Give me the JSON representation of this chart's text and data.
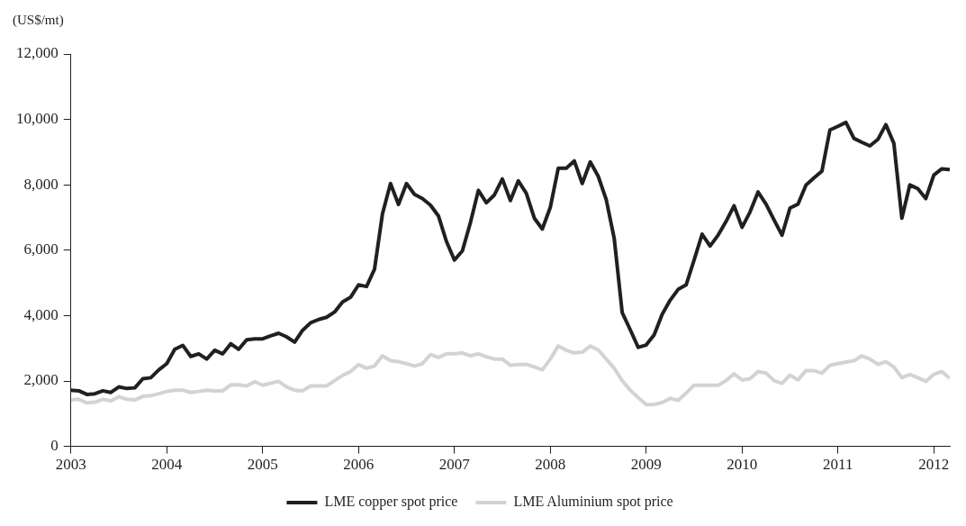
{
  "chart_data": {
    "type": "line",
    "ylabel": "(US$/mt)",
    "x": [
      "2003-01",
      "2003-02",
      "2003-03",
      "2003-04",
      "2003-05",
      "2003-06",
      "2003-07",
      "2003-08",
      "2003-09",
      "2003-10",
      "2003-11",
      "2003-12",
      "2004-01",
      "2004-02",
      "2004-03",
      "2004-04",
      "2004-05",
      "2004-06",
      "2004-07",
      "2004-08",
      "2004-09",
      "2004-10",
      "2004-11",
      "2004-12",
      "2005-01",
      "2005-02",
      "2005-03",
      "2005-04",
      "2005-05",
      "2005-06",
      "2005-07",
      "2005-08",
      "2005-09",
      "2005-10",
      "2005-11",
      "2005-12",
      "2006-01",
      "2006-02",
      "2006-03",
      "2006-04",
      "2006-05",
      "2006-06",
      "2006-07",
      "2006-08",
      "2006-09",
      "2006-10",
      "2006-11",
      "2006-12",
      "2007-01",
      "2007-02",
      "2007-03",
      "2007-04",
      "2007-05",
      "2007-06",
      "2007-07",
      "2007-08",
      "2007-09",
      "2007-10",
      "2007-11",
      "2007-12",
      "2008-01",
      "2008-02",
      "2008-03",
      "2008-04",
      "2008-05",
      "2008-06",
      "2008-07",
      "2008-08",
      "2008-09",
      "2008-10",
      "2008-11",
      "2008-12",
      "2009-01",
      "2009-02",
      "2009-03",
      "2009-04",
      "2009-05",
      "2009-06",
      "2009-07",
      "2009-08",
      "2009-09",
      "2009-10",
      "2009-11",
      "2009-12",
      "2010-01",
      "2010-02",
      "2010-03",
      "2010-04",
      "2010-05",
      "2010-06",
      "2010-07",
      "2010-08",
      "2010-09",
      "2010-10",
      "2010-11",
      "2010-12",
      "2011-01",
      "2011-02",
      "2011-03",
      "2011-04",
      "2011-05",
      "2011-06",
      "2011-07",
      "2011-08",
      "2011-09",
      "2011-10",
      "2011-11",
      "2011-12",
      "2012-01",
      "2012-02",
      "2012-03"
    ],
    "series": [
      {
        "name": "LME copper spot price",
        "color": "#231f20",
        "values": [
          1720,
          1700,
          1590,
          1610,
          1700,
          1650,
          1820,
          1770,
          1790,
          2070,
          2100,
          2340,
          2530,
          2970,
          3090,
          2750,
          2830,
          2670,
          2940,
          2830,
          3140,
          2970,
          3260,
          3290,
          3290,
          3380,
          3460,
          3350,
          3190,
          3550,
          3780,
          3880,
          3950,
          4110,
          4420,
          4560,
          4940,
          4890,
          5420,
          7120,
          8040,
          7400,
          8040,
          7710,
          7580,
          7380,
          7050,
          6270,
          5700,
          5980,
          6840,
          7830,
          7450,
          7690,
          8180,
          7520,
          8120,
          7740,
          6980,
          6650,
          7310,
          8510,
          8510,
          8730,
          8040,
          8700,
          8260,
          7550,
          6360,
          4090,
          3570,
          3030,
          3100,
          3410,
          4040,
          4470,
          4800,
          4940,
          5700,
          6490,
          6130,
          6460,
          6880,
          7360,
          6700,
          7170,
          7780,
          7410,
          6930,
          6460,
          7290,
          7410,
          7990,
          8210,
          8420,
          9680,
          9790,
          9910,
          9420,
          9300,
          9190,
          9390,
          9840,
          9270,
          6980,
          8000,
          7880,
          7580,
          8300,
          8490,
          8470
        ]
      },
      {
        "name": "LME Aluminium spot price",
        "color": "#d1d3d4",
        "values": [
          1420,
          1440,
          1330,
          1350,
          1440,
          1390,
          1520,
          1440,
          1420,
          1530,
          1550,
          1610,
          1680,
          1720,
          1720,
          1650,
          1680,
          1720,
          1700,
          1700,
          1880,
          1880,
          1850,
          1980,
          1870,
          1930,
          1990,
          1820,
          1720,
          1700,
          1850,
          1850,
          1850,
          2010,
          2170,
          2290,
          2500,
          2390,
          2460,
          2770,
          2620,
          2590,
          2530,
          2460,
          2530,
          2810,
          2720,
          2830,
          2830,
          2860,
          2770,
          2830,
          2740,
          2670,
          2670,
          2480,
          2500,
          2510,
          2430,
          2340,
          2670,
          3070,
          2940,
          2860,
          2880,
          3070,
          2950,
          2670,
          2390,
          2010,
          1720,
          1490,
          1280,
          1280,
          1340,
          1470,
          1410,
          1630,
          1870,
          1870,
          1870,
          1870,
          2010,
          2220,
          2030,
          2070,
          2290,
          2240,
          2010,
          1930,
          2180,
          2030,
          2320,
          2320,
          2240,
          2480,
          2530,
          2580,
          2620,
          2770,
          2670,
          2510,
          2590,
          2430,
          2100,
          2200,
          2100,
          1990,
          2200,
          2290,
          2080
        ]
      }
    ],
    "xlim": [
      "2003-01",
      "2012-03"
    ],
    "xticks": [
      "2003",
      "2004",
      "2005",
      "2006",
      "2007",
      "2008",
      "2009",
      "2010",
      "2011",
      "2012"
    ],
    "ylim": [
      0,
      12000
    ],
    "yticks": [
      0,
      {
        "value": 2000,
        "label": "2,000"
      },
      {
        "value": 4000,
        "label": "4,000"
      },
      {
        "value": 6000,
        "label": "6,000"
      },
      {
        "value": 8000,
        "label": "8,000"
      },
      {
        "value": 10000,
        "label": "10,000"
      },
      {
        "value": 12000,
        "label": "12,000"
      }
    ],
    "grid": false,
    "legend": "bottom",
    "marker": "none",
    "line_style": "solid"
  }
}
